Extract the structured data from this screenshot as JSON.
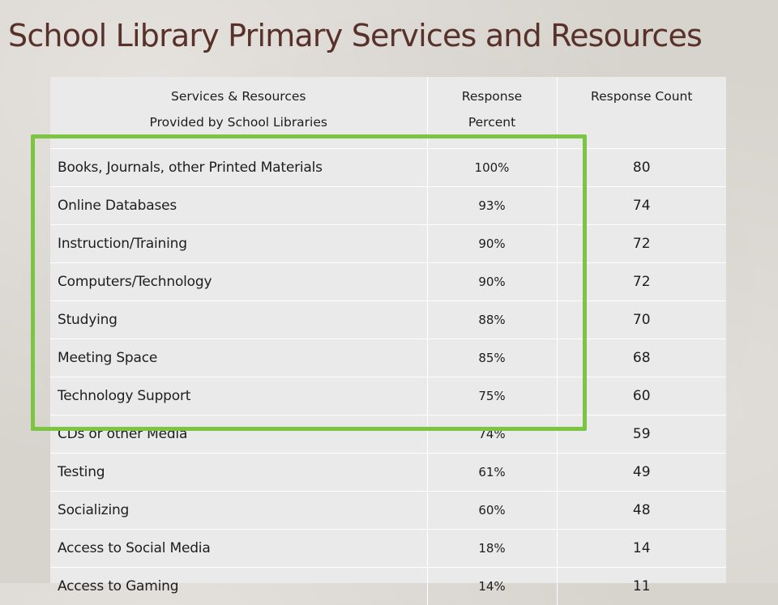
{
  "title": "School Library Primary Services and Resources",
  "highlight_color": "#7cc542",
  "table": {
    "headers": {
      "service_line1": "Services & Resources",
      "service_line2": "Provided by School Libraries",
      "percent_line1": "Response",
      "percent_line2": "Percent",
      "count": "Response Count"
    },
    "rows": [
      {
        "name": "Books, Journals, other Printed Materials",
        "percent": "100%",
        "count": "80"
      },
      {
        "name": "Online Databases",
        "percent": "93%",
        "count": "74"
      },
      {
        "name": "Instruction/Training",
        "percent": "90%",
        "count": "72"
      },
      {
        "name": "Computers/Technology",
        "percent": "90%",
        "count": "72"
      },
      {
        "name": "Studying",
        "percent": "88%",
        "count": "70"
      },
      {
        "name": "Meeting Space",
        "percent": "85%",
        "count": "68"
      },
      {
        "name": "Technology Support",
        "percent": "75%",
        "count": "60"
      },
      {
        "name": "CDs or other Media",
        "percent": "74%",
        "count": "59"
      },
      {
        "name": "Testing",
        "percent": "61%",
        "count": "49"
      },
      {
        "name": "Socializing",
        "percent": "60%",
        "count": "48"
      },
      {
        "name": "Access to Social Media",
        "percent": "18%",
        "count": "14"
      },
      {
        "name": "Access to Gaming",
        "percent": "14%",
        "count": "11"
      }
    ]
  }
}
